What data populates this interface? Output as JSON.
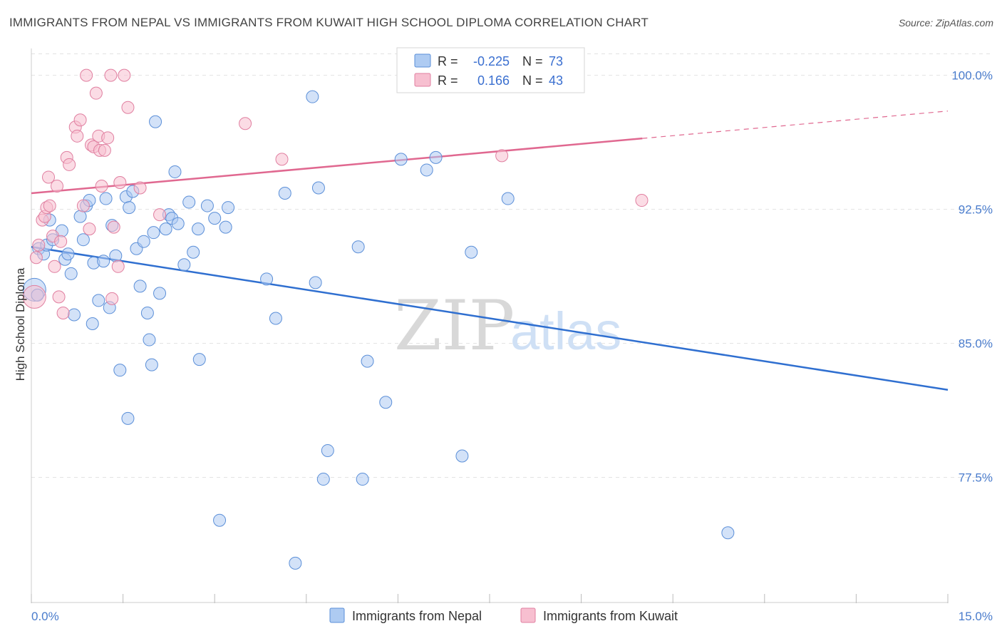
{
  "header": {
    "title": "IMMIGRANTS FROM NEPAL VS IMMIGRANTS FROM KUWAIT HIGH SCHOOL DIPLOMA CORRELATION CHART",
    "source": "Source: ZipAtlas.com"
  },
  "watermark": {
    "part1": "ZIP",
    "part2": "atlas"
  },
  "colors": {
    "blue_fill": "#aecbf2",
    "blue_stroke": "#5b8fd8",
    "blue_line": "#2f6fd0",
    "pink_fill": "#f7bfd0",
    "pink_stroke": "#e07fa0",
    "pink_line": "#e06890",
    "grid": "#e3e3e3",
    "tick_text": "#4a7ccc"
  },
  "stats": {
    "r_label": "R =",
    "n_label": "N =",
    "rows": [
      {
        "series": "nepal",
        "r": "-0.225",
        "n": "73"
      },
      {
        "series": "kuwait",
        "r": "0.166",
        "n": "43"
      }
    ]
  },
  "chart_data": {
    "type": "scatter",
    "title": "IMMIGRANTS FROM NEPAL VS IMMIGRANTS FROM KUWAIT HIGH SCHOOL DIPLOMA CORRELATION CHART",
    "xlabel": "",
    "ylabel": "High School Diploma",
    "xlim": [
      0,
      15
    ],
    "ylim": [
      70.5,
      101.5
    ],
    "x_tick_labels": [
      "0.0%",
      "15.0%"
    ],
    "y_ticks": [
      {
        "value": 100.0,
        "label": "100.0%"
      },
      {
        "value": 92.5,
        "label": "92.5%"
      },
      {
        "value": 85.0,
        "label": "85.0%"
      },
      {
        "value": 77.5,
        "label": "77.5%"
      }
    ],
    "legend_position": "bottom-center",
    "grid": true,
    "series": [
      {
        "name": "Immigrants from Nepal",
        "key": "nepal",
        "r": -0.225,
        "n": 73,
        "trend": {
          "x0": 0.0,
          "y0": 90.4,
          "x1": 15.0,
          "y1": 82.4,
          "dash_from": null
        },
        "points": [
          [
            0.05,
            88.0
          ],
          [
            0.1,
            87.7
          ],
          [
            0.12,
            90.3
          ],
          [
            0.2,
            90.0
          ],
          [
            0.25,
            90.5
          ],
          [
            0.3,
            91.9
          ],
          [
            0.35,
            90.8
          ],
          [
            0.5,
            91.3
          ],
          [
            0.55,
            89.7
          ],
          [
            0.6,
            90.0
          ],
          [
            0.65,
            88.9
          ],
          [
            0.7,
            86.6
          ],
          [
            0.8,
            92.1
          ],
          [
            0.85,
            90.8
          ],
          [
            0.9,
            92.7
          ],
          [
            0.95,
            93.0
          ],
          [
            1.0,
            86.1
          ],
          [
            1.02,
            89.5
          ],
          [
            1.1,
            87.4
          ],
          [
            1.18,
            89.6
          ],
          [
            1.22,
            93.1
          ],
          [
            1.28,
            87.0
          ],
          [
            1.32,
            91.6
          ],
          [
            1.38,
            89.9
          ],
          [
            1.45,
            83.5
          ],
          [
            1.55,
            93.2
          ],
          [
            1.58,
            80.8
          ],
          [
            1.6,
            92.6
          ],
          [
            1.66,
            93.5
          ],
          [
            1.72,
            90.3
          ],
          [
            1.78,
            88.2
          ],
          [
            1.84,
            90.7
          ],
          [
            1.9,
            86.7
          ],
          [
            1.93,
            85.2
          ],
          [
            1.97,
            83.8
          ],
          [
            2.03,
            97.4
          ],
          [
            2.1,
            87.8
          ],
          [
            2.2,
            91.4
          ],
          [
            2.25,
            92.2
          ],
          [
            2.3,
            92.0
          ],
          [
            2.35,
            94.6
          ],
          [
            2.4,
            91.7
          ],
          [
            2.5,
            89.4
          ],
          [
            2.58,
            92.9
          ],
          [
            2.65,
            90.1
          ],
          [
            2.73,
            91.4
          ],
          [
            2.75,
            84.1
          ],
          [
            2.88,
            92.7
          ],
          [
            3.08,
            75.1
          ],
          [
            3.18,
            91.5
          ],
          [
            3.22,
            92.6
          ],
          [
            3.85,
            88.6
          ],
          [
            4.0,
            86.4
          ],
          [
            4.15,
            93.4
          ],
          [
            4.32,
            72.7
          ],
          [
            4.6,
            98.8
          ],
          [
            4.65,
            88.4
          ],
          [
            4.7,
            93.7
          ],
          [
            4.78,
            77.4
          ],
          [
            4.85,
            79.0
          ],
          [
            5.35,
            90.4
          ],
          [
            5.42,
            77.4
          ],
          [
            5.5,
            84.0
          ],
          [
            5.8,
            81.7
          ],
          [
            6.05,
            95.3
          ],
          [
            6.47,
            94.7
          ],
          [
            6.62,
            95.4
          ],
          [
            7.05,
            78.7
          ],
          [
            7.2,
            90.1
          ],
          [
            7.8,
            93.1
          ],
          [
            11.4,
            74.4
          ],
          [
            3.0,
            92.0
          ],
          [
            2.0,
            91.2
          ]
        ]
      },
      {
        "name": "Immigrants from Kuwait",
        "key": "kuwait",
        "r": 0.166,
        "n": 43,
        "trend": {
          "x0": 0.0,
          "y0": 93.4,
          "x1": 15.0,
          "y1": 98.0,
          "dash_from": 10.0
        },
        "points": [
          [
            0.05,
            87.6
          ],
          [
            0.08,
            89.8
          ],
          [
            0.12,
            90.5
          ],
          [
            0.18,
            91.9
          ],
          [
            0.22,
            92.1
          ],
          [
            0.25,
            92.6
          ],
          [
            0.28,
            94.3
          ],
          [
            0.3,
            92.7
          ],
          [
            0.35,
            91.0
          ],
          [
            0.38,
            89.3
          ],
          [
            0.42,
            93.8
          ],
          [
            0.45,
            87.6
          ],
          [
            0.48,
            90.7
          ],
          [
            0.52,
            86.7
          ],
          [
            0.58,
            95.4
          ],
          [
            0.62,
            95.0
          ],
          [
            0.72,
            97.1
          ],
          [
            0.75,
            96.6
          ],
          [
            0.8,
            97.5
          ],
          [
            0.85,
            92.7
          ],
          [
            0.9,
            100.0
          ],
          [
            0.95,
            91.4
          ],
          [
            0.98,
            96.1
          ],
          [
            1.02,
            96.0
          ],
          [
            1.06,
            99.0
          ],
          [
            1.1,
            96.6
          ],
          [
            1.12,
            95.8
          ],
          [
            1.15,
            93.8
          ],
          [
            1.2,
            95.8
          ],
          [
            1.25,
            96.5
          ],
          [
            1.3,
            100.0
          ],
          [
            1.32,
            87.5
          ],
          [
            1.35,
            91.5
          ],
          [
            1.42,
            89.3
          ],
          [
            1.45,
            94.0
          ],
          [
            1.52,
            100.0
          ],
          [
            1.58,
            98.2
          ],
          [
            1.78,
            93.7
          ],
          [
            2.1,
            92.2
          ],
          [
            3.5,
            97.3
          ],
          [
            4.1,
            95.3
          ],
          [
            7.7,
            95.5
          ],
          [
            9.99,
            93.0
          ]
        ]
      }
    ]
  },
  "legend": {
    "items": [
      {
        "label": "Immigrants from Nepal",
        "key": "nepal"
      },
      {
        "label": "Immigrants from Kuwait",
        "key": "kuwait"
      }
    ]
  }
}
